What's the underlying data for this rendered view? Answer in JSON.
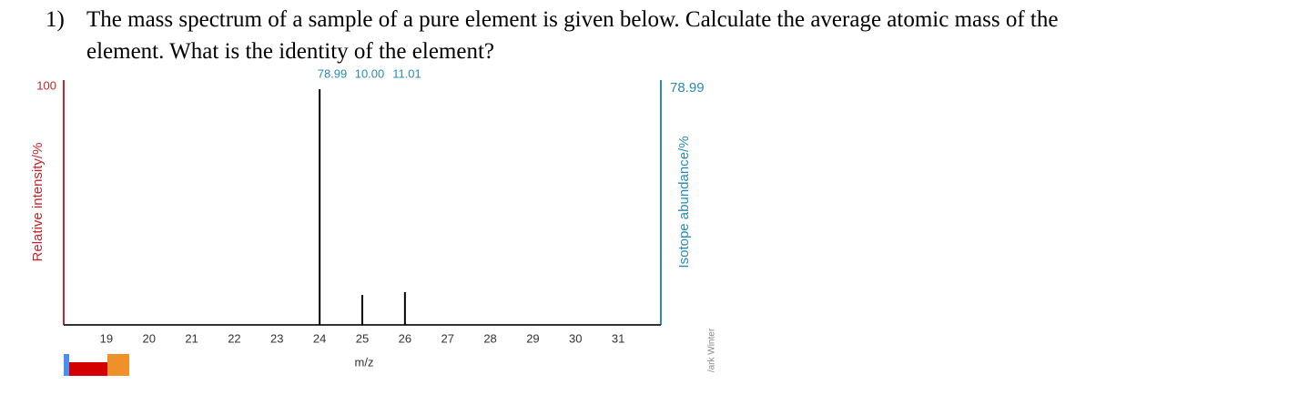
{
  "question": {
    "number": "1)",
    "text_line1": "The mass spectrum of a sample of a pure element is given below. Calculate the average atomic mass of the",
    "text_line2": "element.  What is the identity of the element?"
  },
  "chart_data": {
    "type": "bar",
    "xlabel": "m/z",
    "ylabel": "Relative intensity/%",
    "y2label": "Isotope abundance/%",
    "x": [
      24,
      25,
      26
    ],
    "values": [
      100,
      12.7,
      13.9
    ],
    "value_labels": [
      "78.99",
      "10.00",
      "11.01"
    ],
    "color": "#000000",
    "xlim": [
      18,
      32
    ],
    "xticks": [
      19,
      20,
      21,
      22,
      23,
      24,
      25,
      26,
      27,
      28,
      29,
      30,
      31
    ],
    "ylim": [
      0,
      100
    ],
    "yticks": [
      100
    ],
    "y2lim": [
      0,
      78.99
    ],
    "y2ticks": [
      78.99
    ],
    "y_axis_color": "#c0272d",
    "y2_axis_color": "#2a8ab5",
    "credit": "/ark Winter"
  }
}
